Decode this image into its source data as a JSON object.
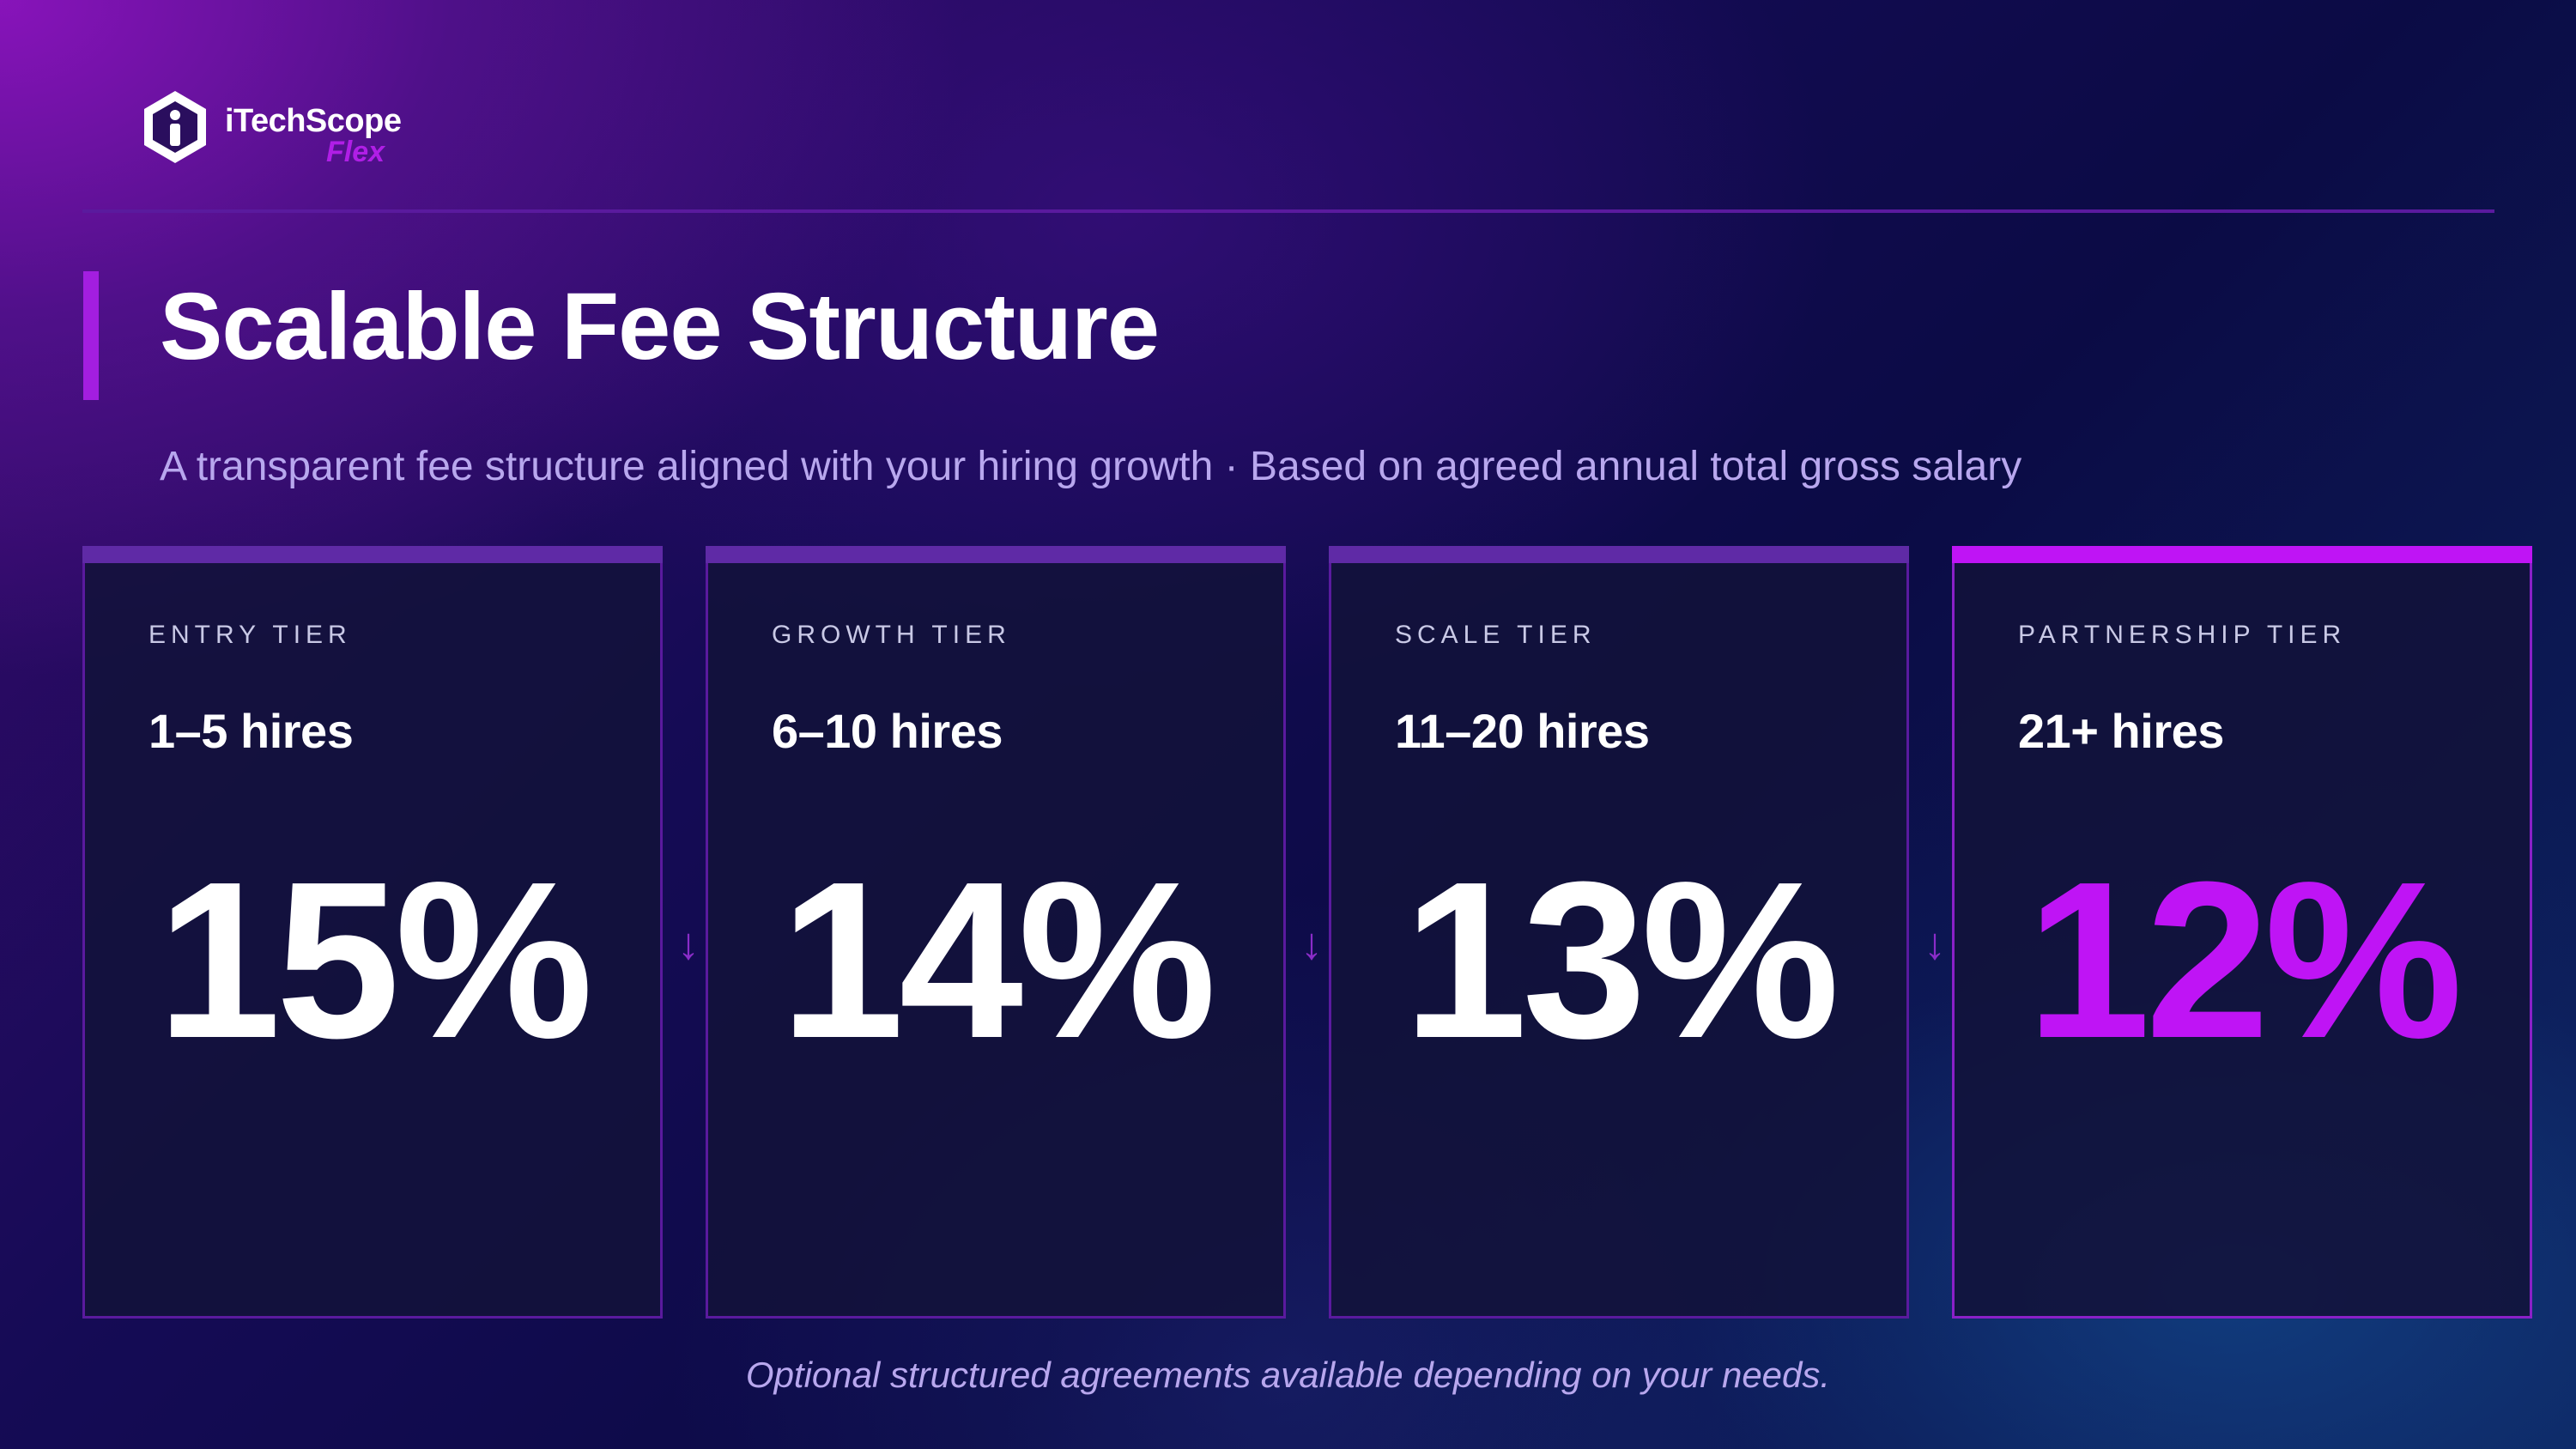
{
  "brand": {
    "name": "iTechScope",
    "sub": "Flex"
  },
  "header": {
    "title": "Scalable Fee Structure",
    "subtitle": "A transparent fee structure aligned with your hiring growth · Based on agreed annual total gross salary"
  },
  "tiers": [
    {
      "label": "ENTRY TIER",
      "hires": "1–5 hires",
      "fee": "15%"
    },
    {
      "label": "GROWTH TIER",
      "hires": "6–10 hires",
      "fee": "14%"
    },
    {
      "label": "SCALE TIER",
      "hires": "11–20 hires",
      "fee": "13%"
    },
    {
      "label": "PARTNERSHIP TIER",
      "hires": "21+ hires",
      "fee": "12%"
    }
  ],
  "arrow_glyph": "↓",
  "footer": "Optional structured agreements available depending on your needs.",
  "colors": {
    "accent": "#bf14f5",
    "card_border": "#5a1a9e",
    "subtitle_text": "#b8a7ee"
  },
  "icons": {
    "logo": "itechscope-hexagon-logo-icon",
    "arrow": "arrow-down-icon"
  }
}
